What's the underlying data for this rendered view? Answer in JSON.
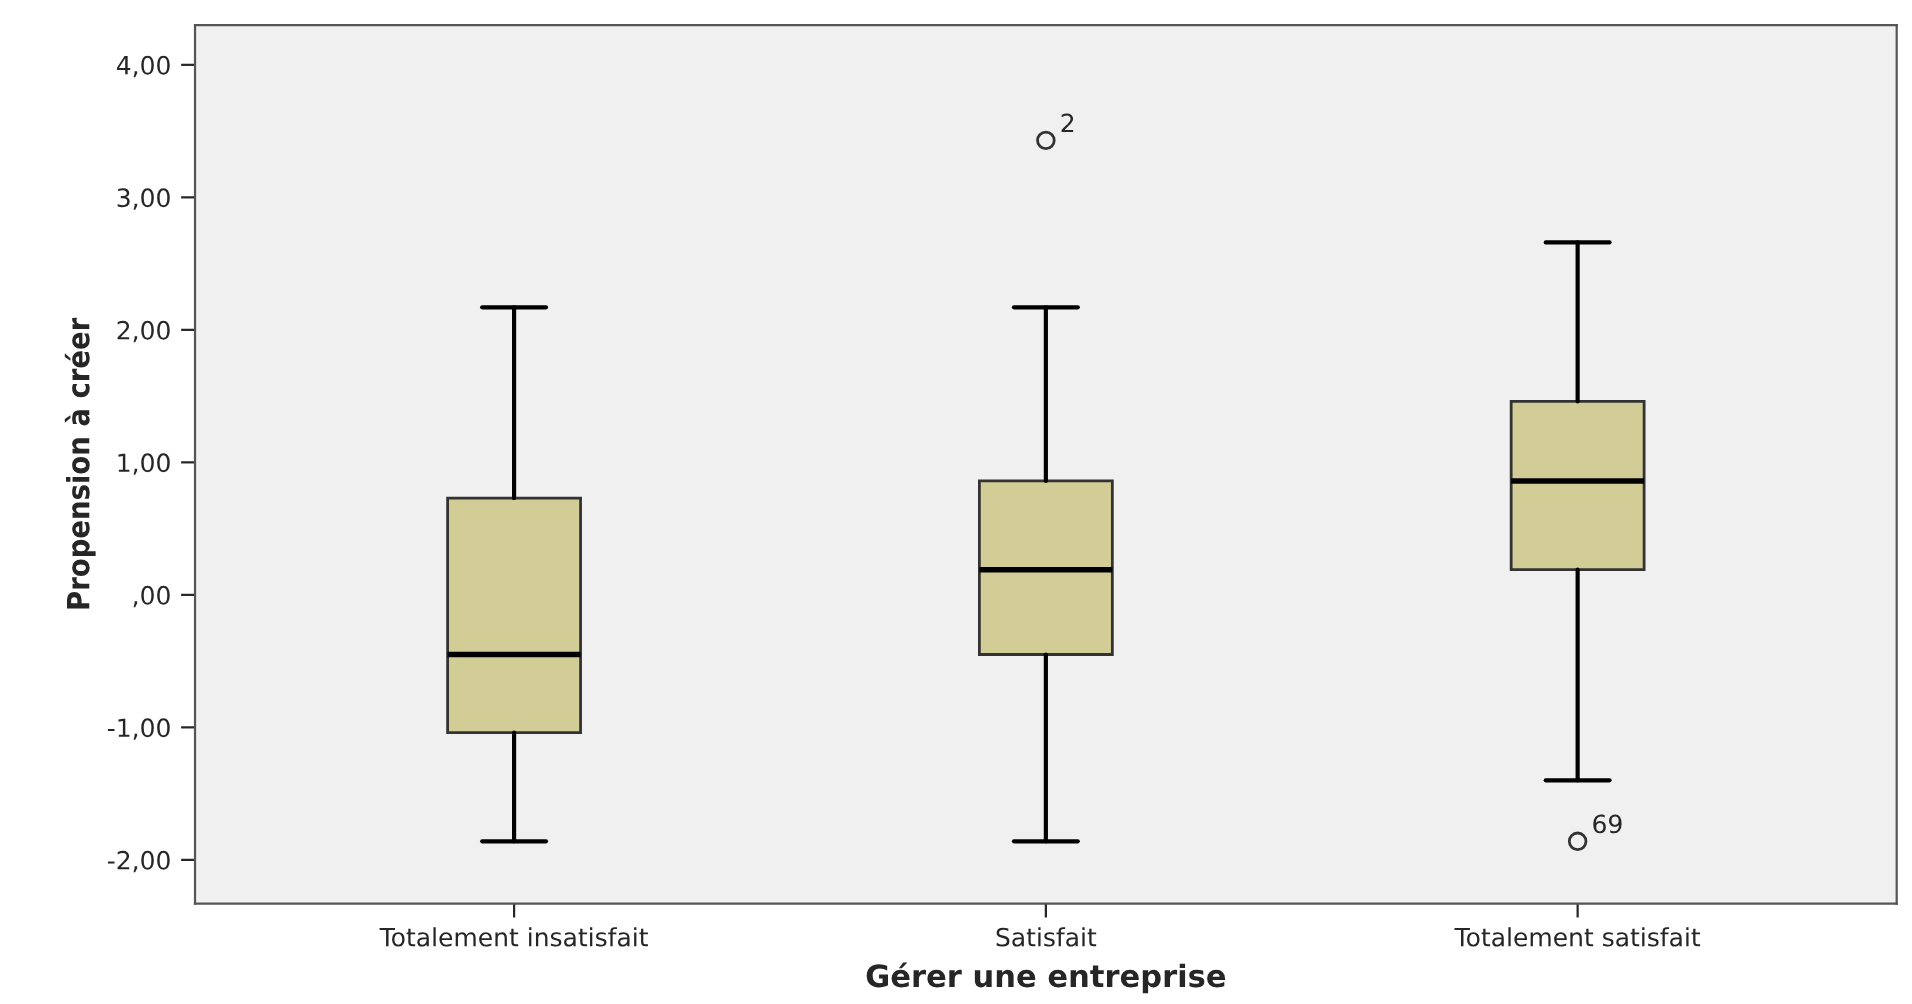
{
  "chart_data": {
    "type": "box",
    "xlabel": "Gérer une entreprise",
    "ylabel": "Propension à créer",
    "categories": [
      "Totalement insatisfait",
      "Satisfait",
      "Totalement satisfait"
    ],
    "color": "#d2cd96",
    "boxes": [
      {
        "low": -1.86,
        "q1": -1.04,
        "median": -0.45,
        "q3": 0.73,
        "high": 2.17
      },
      {
        "low": -1.86,
        "q1": -0.45,
        "median": 0.19,
        "q3": 0.86,
        "high": 2.17,
        "outliers": [
          3.43
        ]
      },
      {
        "low": -1.4,
        "q1": 0.19,
        "median": 0.86,
        "q3": 1.46,
        "high": 2.66,
        "outliers": [
          -1.86
        ]
      }
    ],
    "annotations": [
      "2",
      "69"
    ],
    "ylim": [
      -2.33,
      4.3
    ],
    "yticks": [
      {
        "value": -2,
        "label": "-2,00"
      },
      {
        "value": -1,
        "label": "-1,00"
      },
      {
        "value": 0,
        "label": ",00"
      },
      {
        "value": 1,
        "label": "1,00"
      },
      {
        "value": 2,
        "label": "2,00"
      },
      {
        "value": 3,
        "label": "3,00"
      },
      {
        "value": 4,
        "label": "4,00"
      }
    ],
    "grid": false,
    "legend": false
  }
}
